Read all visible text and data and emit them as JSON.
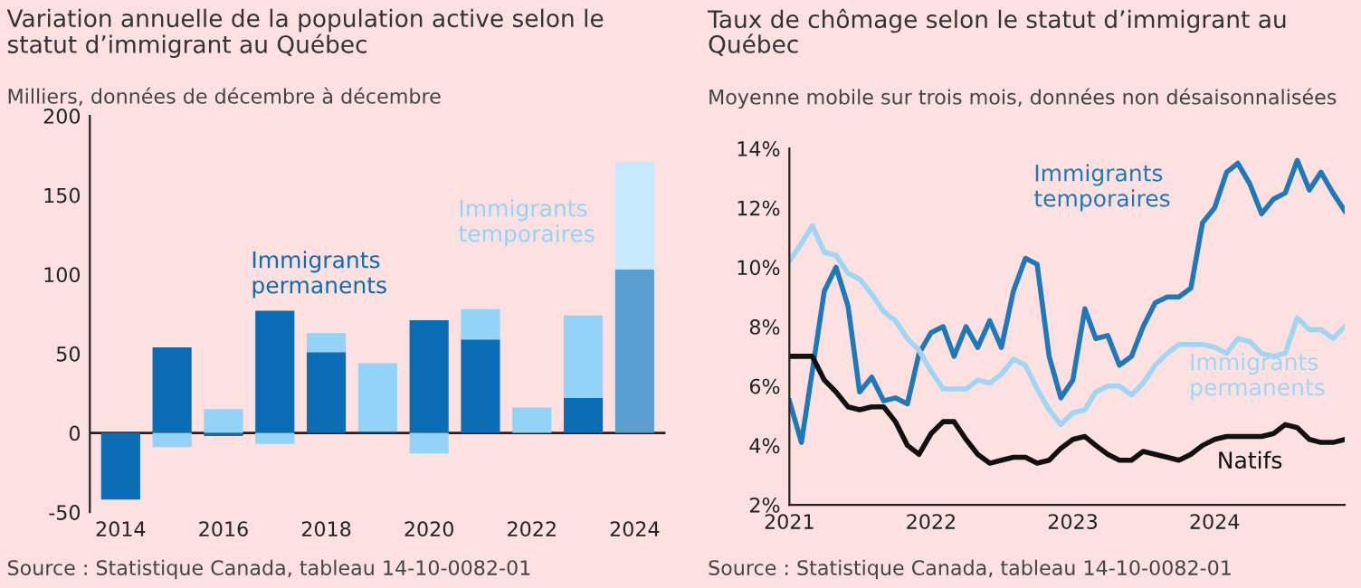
{
  "chart_data": [
    {
      "type": "bar",
      "title": "Variation annuelle de la population active selon le statut d’immigrant au Québec",
      "subtitle": "Milliers, données de décembre à décembre",
      "categories": [
        "2014",
        null,
        "2016",
        null,
        "2018",
        null,
        "2020",
        null,
        "2022",
        null,
        "2024"
      ],
      "stacked": true,
      "legend": false,
      "grid": false,
      "series": [
        {
          "name": "Immigrants permanents",
          "color": "#0a6db3",
          "colors": [
            "#0a6db3",
            "#0a6db3",
            "#0a6db3",
            "#0a6db3",
            "#0a6db3",
            "#0a6db3",
            "#0a6db3",
            "#0a6db3",
            "#0a6db3",
            "#0a6db3",
            "#5b9fd1"
          ],
          "values": [
            -42,
            54,
            -2,
            77,
            51,
            1,
            71,
            59,
            0,
            22,
            103
          ]
        },
        {
          "name": "Immigrants temporaires",
          "color": "#93d3f8",
          "colors": [
            "#93d3f8",
            "#93d3f8",
            "#93d3f8",
            "#93d3f8",
            "#93d3f8",
            "#93d3f8",
            "#93d3f8",
            "#93d3f8",
            "#93d3f8",
            "#93d3f8",
            "#c6eafc"
          ],
          "values": [
            0,
            -9,
            15,
            -7,
            12,
            43,
            -13,
            19,
            16,
            52,
            68
          ]
        }
      ],
      "ylim": [
        -50,
        200
      ],
      "yticks": [
        -50,
        0,
        50,
        100,
        150,
        200
      ],
      "ref_lines": [
        {
          "axis": "y",
          "value": 0,
          "color": "#222222"
        }
      ],
      "annotations": [
        "Source : Statistique Canada, tableau 14-10-0082-01"
      ]
    },
    {
      "type": "line",
      "title": "Taux de chômage selon le statut d’immigrant au Québec",
      "subtitle": "Moyenne mobile sur trois mois, données non désaisonnalisées",
      "x": [
        "2021-01",
        "2021-02",
        "2021-03",
        "2021-04",
        "2021-05",
        "2021-06",
        "2021-07",
        "2021-08",
        "2021-09",
        "2021-10",
        "2021-11",
        "2021-12",
        "2022-01",
        "2022-02",
        "2022-03",
        "2022-04",
        "2022-05",
        "2022-06",
        "2022-07",
        "2022-08",
        "2022-09",
        "2022-10",
        "2022-11",
        "2022-12",
        "2023-01",
        "2023-02",
        "2023-03",
        "2023-04",
        "2023-05",
        "2023-06",
        "2023-07",
        "2023-08",
        "2023-09",
        "2023-10",
        "2023-11",
        "2023-12",
        "2024-01",
        "2024-02",
        "2024-03",
        "2024-04",
        "2024-05",
        "2024-06",
        "2024-07",
        "2024-08",
        "2024-09",
        "2024-10",
        "2024-11",
        "2024-12"
      ],
      "legend": false,
      "grid": false,
      "marker": "none",
      "line_style": "solid",
      "series": [
        {
          "name": "Immigrants temporaires",
          "color": "#1f78b8",
          "values": [
            5.5,
            4.1,
            6.5,
            9.2,
            10.0,
            8.7,
            5.8,
            6.3,
            5.5,
            5.6,
            5.4,
            7.1,
            7.8,
            8.0,
            7.0,
            8.0,
            7.3,
            8.2,
            7.3,
            9.2,
            10.3,
            10.1,
            7.0,
            5.6,
            6.2,
            8.6,
            7.6,
            7.7,
            6.7,
            7.0,
            8.0,
            8.8,
            9.0,
            9.0,
            9.3,
            11.5,
            12.0,
            13.2,
            13.5,
            12.8,
            11.8,
            12.3,
            12.5,
            13.6,
            12.6,
            13.2,
            12.5,
            11.9
          ]
        },
        {
          "name": "Immigrants permanents",
          "color": "#9fd6f5",
          "values": [
            10.2,
            10.8,
            11.4,
            10.5,
            10.4,
            9.8,
            9.6,
            9.1,
            8.5,
            8.2,
            7.6,
            7.2,
            6.5,
            5.9,
            5.9,
            5.9,
            6.2,
            6.1,
            6.4,
            6.9,
            6.7,
            5.9,
            5.2,
            4.7,
            5.1,
            5.2,
            5.8,
            6.0,
            6.0,
            5.7,
            6.1,
            6.7,
            7.1,
            7.4,
            7.4,
            7.4,
            7.3,
            7.1,
            7.6,
            7.5,
            7.1,
            7.0,
            7.1,
            8.3,
            7.9,
            7.9,
            7.6,
            8.0
          ]
        },
        {
          "name": "Natifs",
          "color": "#111111",
          "values": [
            7.0,
            7.0,
            7.0,
            6.2,
            5.8,
            5.3,
            5.2,
            5.3,
            5.3,
            4.8,
            4.0,
            3.7,
            4.4,
            4.8,
            4.8,
            4.2,
            3.7,
            3.4,
            3.5,
            3.6,
            3.6,
            3.4,
            3.5,
            3.9,
            4.2,
            4.3,
            4.0,
            3.7,
            3.5,
            3.5,
            3.8,
            3.7,
            3.6,
            3.5,
            3.7,
            4.0,
            4.2,
            4.3,
            4.3,
            4.3,
            4.3,
            4.4,
            4.7,
            4.6,
            4.2,
            4.1,
            4.1,
            4.2
          ]
        }
      ],
      "xlim": [
        "2021-01",
        "2024-12"
      ],
      "xticks": [
        "2021",
        "2022",
        "2023",
        "2024"
      ],
      "ylim": [
        2,
        14
      ],
      "yticks": [
        {
          "value": 2,
          "label": "2%"
        },
        {
          "value": 4,
          "label": "4%"
        },
        {
          "value": 6,
          "label": "6%"
        },
        {
          "value": 8,
          "label": "8%"
        },
        {
          "value": 10,
          "label": "10%"
        },
        {
          "value": 12,
          "label": "12%"
        },
        {
          "value": 14,
          "label": "14%"
        }
      ],
      "annotations": [
        "Source : Statistique Canada, tableau 14-10-0082-01"
      ]
    }
  ]
}
